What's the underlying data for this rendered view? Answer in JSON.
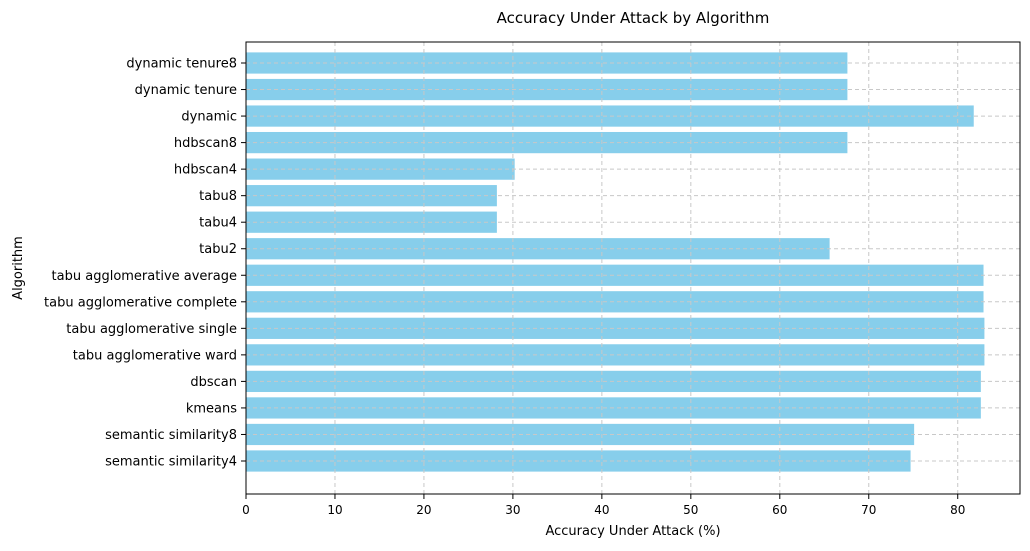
{
  "chart_data": {
    "type": "bar",
    "orientation": "horizontal",
    "title": "Accuracy Under Attack by Algorithm",
    "xlabel": "Accuracy Under Attack (%)",
    "ylabel": "Algorithm",
    "xlim": [
      0,
      87
    ],
    "xticks": [
      0,
      10,
      20,
      30,
      40,
      50,
      60,
      70,
      80
    ],
    "grid": true,
    "bar_color": "#87ceeb",
    "grid_color": "#c8c8c8",
    "categories": [
      "dynamic tenure8",
      "dynamic tenure",
      "dynamic",
      "hdbscan8",
      "hdbscan4",
      "tabu8",
      "tabu4",
      "tabu2",
      "tabu agglomerative average",
      "tabu agglomerative complete",
      "tabu agglomerative single",
      "tabu agglomerative ward",
      "dbscan",
      "kmeans",
      "semantic similarity8",
      "semantic similarity4"
    ],
    "values": [
      67.6,
      67.6,
      81.8,
      67.6,
      30.2,
      28.2,
      28.2,
      65.6,
      82.9,
      82.9,
      83.0,
      83.0,
      82.6,
      82.6,
      75.1,
      74.7
    ]
  }
}
